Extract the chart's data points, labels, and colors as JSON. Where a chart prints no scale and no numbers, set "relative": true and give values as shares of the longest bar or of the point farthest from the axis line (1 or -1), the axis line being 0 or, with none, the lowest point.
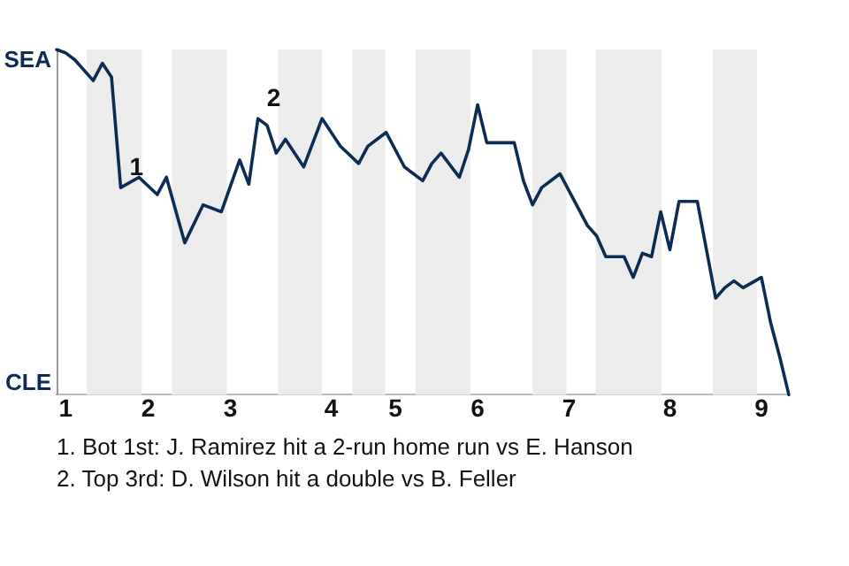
{
  "chart_data": {
    "type": "line",
    "relative": true,
    "categories": [
      null,
      "1",
      null,
      null,
      null,
      null,
      null,
      null,
      null,
      null,
      "2",
      null,
      null,
      null,
      null,
      null,
      null,
      null,
      null,
      "3",
      null,
      null,
      null,
      null,
      null,
      null,
      null,
      null,
      null,
      null,
      "4",
      null,
      null,
      null,
      null,
      null,
      null,
      "5",
      null,
      null,
      null,
      null,
      null,
      null,
      null,
      null,
      "6",
      null,
      null,
      null,
      null,
      null,
      null,
      null,
      null,
      null,
      "7",
      null,
      null,
      null,
      null,
      null,
      null,
      null,
      null,
      null,
      null,
      "8",
      null,
      null,
      null,
      null,
      null,
      null,
      null,
      null,
      null,
      "9",
      null,
      null,
      null
    ],
    "series": [
      {
        "color": "#0d2c54",
        "values": [
          1,
          0.99,
          0.97,
          null,
          0.91,
          0.96,
          0.92,
          0.6,
          null,
          0.63,
          null,
          0.58,
          0.63,
          null,
          0.44,
          null,
          0.55,
          null,
          0.53,
          null,
          0.68,
          0.61,
          0.8,
          0.78,
          0.7,
          0.74,
          null,
          0.66,
          null,
          0.8,
          null,
          0.72,
          null,
          0.67,
          0.72,
          null,
          0.76,
          null,
          0.66,
          null,
          0.62,
          0.67,
          0.7,
          null,
          0.63,
          0.71,
          0.84,
          0.73,
          null,
          null,
          0.73,
          0.62,
          0.55,
          0.6,
          null,
          0.64,
          null,
          0.54,
          0.49,
          0.46,
          0.4,
          null,
          0.4,
          0.34,
          0.41,
          0.4,
          0.53,
          0.42,
          0.56,
          null,
          0.56,
          null,
          0.28,
          0.31,
          0.33,
          0.31,
          null,
          0.34,
          0.21,
          0.11,
          0
        ]
      }
    ],
    "legend": false,
    "marker": "none",
    "line_style": "solid",
    "annotations": [
      "SEA",
      "CLE",
      {
        "text": "1",
        "y": 0.6
      },
      {
        "text": "2",
        "y": 0.8
      },
      "1. Bot 1st: J. Ramirez hit a 2-run home run vs E. Hanson",
      "2. Top 3rd: D. Wilson hit a double vs B. Feller"
    ]
  }
}
